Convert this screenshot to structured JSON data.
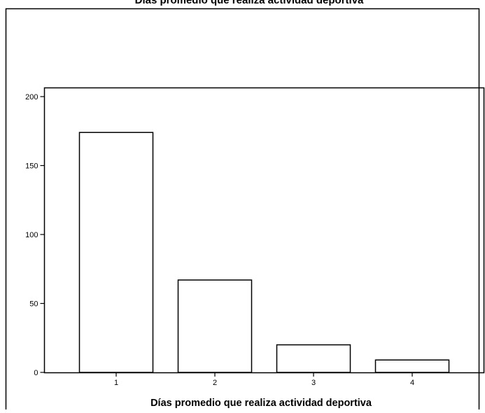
{
  "chart_data": {
    "type": "bar",
    "title": "Días promedio que realiza actividad deportiva",
    "xlabel": "Días promedio que realiza actividad deportiva",
    "ylabel": "",
    "categories": [
      "1",
      "2",
      "3",
      "4"
    ],
    "values": [
      174,
      67,
      20,
      9
    ],
    "ylim": [
      0,
      210
    ],
    "yticks": [
      0,
      50,
      100,
      150,
      200
    ],
    "grid": false,
    "legend": "none",
    "bar_fill": "#ffffff",
    "bar_stroke": "#000000"
  }
}
